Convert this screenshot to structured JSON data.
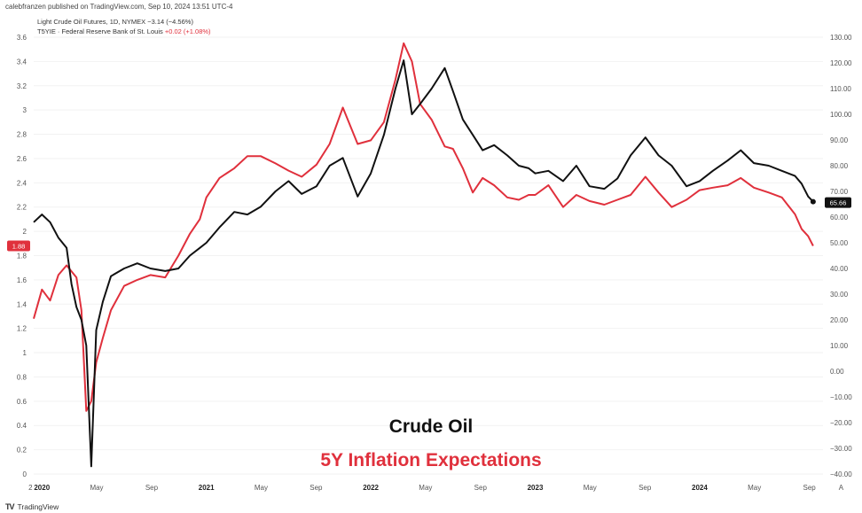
{
  "header": {
    "attribution": "calebfranzen published on TradingView.com, Sep 10, 2024 13:51 UTC-4"
  },
  "legend": {
    "line1_label": "Light Crude Oil Futures, 1D, NYMEX",
    "line1_change": "−3.14 (−4.56%)",
    "line2_label": "T5YIE · Federal Reserve Bank of St. Louis",
    "line2_change": "+0.02 (+1.08%)"
  },
  "footer": {
    "brand": "TradingView",
    "logo_text": "TV"
  },
  "colors": {
    "oil": "#111111",
    "inflation": "#e0303c",
    "grid": "#f2f2f2"
  },
  "chart_data": {
    "type": "line",
    "title": "",
    "annotations": [
      "Crude Oil",
      "5Y Inflation Expectations"
    ],
    "x_ticks": [
      "2",
      "2020",
      "May",
      "Sep",
      "2021",
      "May",
      "Sep",
      "2022",
      "May",
      "Sep",
      "2023",
      "May",
      "Sep",
      "2024",
      "May",
      "Sep",
      "A"
    ],
    "left_axis": {
      "name": "5Y Inflation Expectations",
      "ylim": [
        0,
        3.6
      ],
      "ticks": [
        "0",
        "0.2",
        "0.4",
        "0.6",
        "0.8",
        "1",
        "1.2",
        "1.4",
        "1.6",
        "1.8",
        "2",
        "2.2",
        "2.4",
        "2.6",
        "2.8",
        "3",
        "3.2",
        "3.4",
        "3.6"
      ],
      "last_value_tag": "1.88"
    },
    "right_axis": {
      "name": "Crude Oil",
      "ylim": [
        -40,
        130
      ],
      "ticks": [
        "−40.00",
        "−30.00",
        "−20.00",
        "−10.00",
        "0.00",
        "10.00",
        "20.00",
        "30.00",
        "40.00",
        "50.00",
        "60.00",
        "70.00",
        "80.00",
        "90.00",
        "100.00",
        "110.00",
        "120.00",
        "130.00"
      ],
      "last_value_tag": "65.66"
    },
    "x_range": [
      2019.95,
      2024.75
    ],
    "series": [
      {
        "name": "Crude Oil",
        "axis": "right",
        "points": [
          [
            2019.95,
            58
          ],
          [
            2020.0,
            61
          ],
          [
            2020.05,
            58
          ],
          [
            2020.1,
            52
          ],
          [
            2020.15,
            48
          ],
          [
            2020.18,
            34
          ],
          [
            2020.21,
            25
          ],
          [
            2020.24,
            20
          ],
          [
            2020.27,
            10
          ],
          [
            2020.3,
            -37
          ],
          [
            2020.33,
            16
          ],
          [
            2020.37,
            27
          ],
          [
            2020.42,
            37
          ],
          [
            2020.5,
            40
          ],
          [
            2020.58,
            42
          ],
          [
            2020.66,
            40
          ],
          [
            2020.75,
            39
          ],
          [
            2020.83,
            40
          ],
          [
            2020.9,
            45
          ],
          [
            2020.96,
            48
          ],
          [
            2021.0,
            50
          ],
          [
            2021.08,
            56
          ],
          [
            2021.17,
            62
          ],
          [
            2021.25,
            61
          ],
          [
            2021.33,
            64
          ],
          [
            2021.42,
            70
          ],
          [
            2021.5,
            74
          ],
          [
            2021.58,
            69
          ],
          [
            2021.67,
            72
          ],
          [
            2021.75,
            80
          ],
          [
            2021.83,
            83
          ],
          [
            2021.92,
            68
          ],
          [
            2022.0,
            77
          ],
          [
            2022.08,
            92
          ],
          [
            2022.15,
            110
          ],
          [
            2022.2,
            121
          ],
          [
            2022.25,
            100
          ],
          [
            2022.3,
            104
          ],
          [
            2022.37,
            110
          ],
          [
            2022.45,
            118
          ],
          [
            2022.5,
            109
          ],
          [
            2022.56,
            98
          ],
          [
            2022.62,
            92
          ],
          [
            2022.68,
            86
          ],
          [
            2022.75,
            88
          ],
          [
            2022.83,
            84
          ],
          [
            2022.9,
            80
          ],
          [
            2022.96,
            79
          ],
          [
            2023.0,
            77
          ],
          [
            2023.08,
            78
          ],
          [
            2023.17,
            74
          ],
          [
            2023.25,
            80
          ],
          [
            2023.33,
            72
          ],
          [
            2023.42,
            71
          ],
          [
            2023.5,
            75
          ],
          [
            2023.58,
            84
          ],
          [
            2023.67,
            91
          ],
          [
            2023.75,
            84
          ],
          [
            2023.83,
            80
          ],
          [
            2023.92,
            72
          ],
          [
            2024.0,
            74
          ],
          [
            2024.08,
            78
          ],
          [
            2024.17,
            82
          ],
          [
            2024.25,
            86
          ],
          [
            2024.33,
            81
          ],
          [
            2024.42,
            80
          ],
          [
            2024.5,
            78
          ],
          [
            2024.58,
            76
          ],
          [
            2024.62,
            73
          ],
          [
            2024.66,
            68
          ],
          [
            2024.69,
            66
          ]
        ]
      },
      {
        "name": "5Y Inflation Expectations",
        "axis": "left",
        "points": [
          [
            2019.95,
            1.28
          ],
          [
            2020.0,
            1.52
          ],
          [
            2020.05,
            1.43
          ],
          [
            2020.1,
            1.64
          ],
          [
            2020.15,
            1.72
          ],
          [
            2020.18,
            1.67
          ],
          [
            2020.21,
            1.62
          ],
          [
            2020.24,
            1.35
          ],
          [
            2020.27,
            0.52
          ],
          [
            2020.3,
            0.6
          ],
          [
            2020.33,
            0.92
          ],
          [
            2020.37,
            1.12
          ],
          [
            2020.42,
            1.35
          ],
          [
            2020.5,
            1.55
          ],
          [
            2020.58,
            1.6
          ],
          [
            2020.66,
            1.64
          ],
          [
            2020.75,
            1.62
          ],
          [
            2020.83,
            1.8
          ],
          [
            2020.9,
            1.98
          ],
          [
            2020.96,
            2.1
          ],
          [
            2021.0,
            2.28
          ],
          [
            2021.08,
            2.44
          ],
          [
            2021.17,
            2.52
          ],
          [
            2021.25,
            2.62
          ],
          [
            2021.33,
            2.62
          ],
          [
            2021.42,
            2.56
          ],
          [
            2021.5,
            2.5
          ],
          [
            2021.58,
            2.45
          ],
          [
            2021.67,
            2.55
          ],
          [
            2021.75,
            2.72
          ],
          [
            2021.83,
            3.02
          ],
          [
            2021.92,
            2.72
          ],
          [
            2022.0,
            2.75
          ],
          [
            2022.08,
            2.9
          ],
          [
            2022.15,
            3.25
          ],
          [
            2022.2,
            3.55
          ],
          [
            2022.25,
            3.4
          ],
          [
            2022.3,
            3.05
          ],
          [
            2022.37,
            2.92
          ],
          [
            2022.45,
            2.7
          ],
          [
            2022.5,
            2.68
          ],
          [
            2022.56,
            2.52
          ],
          [
            2022.62,
            2.32
          ],
          [
            2022.68,
            2.44
          ],
          [
            2022.75,
            2.38
          ],
          [
            2022.83,
            2.28
          ],
          [
            2022.9,
            2.26
          ],
          [
            2022.96,
            2.3
          ],
          [
            2023.0,
            2.3
          ],
          [
            2023.08,
            2.38
          ],
          [
            2023.17,
            2.2
          ],
          [
            2023.25,
            2.3
          ],
          [
            2023.33,
            2.25
          ],
          [
            2023.42,
            2.22
          ],
          [
            2023.5,
            2.26
          ],
          [
            2023.58,
            2.3
          ],
          [
            2023.67,
            2.45
          ],
          [
            2023.75,
            2.32
          ],
          [
            2023.83,
            2.2
          ],
          [
            2023.92,
            2.26
          ],
          [
            2024.0,
            2.34
          ],
          [
            2024.08,
            2.36
          ],
          [
            2024.17,
            2.38
          ],
          [
            2024.25,
            2.44
          ],
          [
            2024.33,
            2.36
          ],
          [
            2024.42,
            2.32
          ],
          [
            2024.5,
            2.28
          ],
          [
            2024.58,
            2.14
          ],
          [
            2024.62,
            2.02
          ],
          [
            2024.66,
            1.96
          ],
          [
            2024.69,
            1.88
          ]
        ]
      }
    ]
  }
}
